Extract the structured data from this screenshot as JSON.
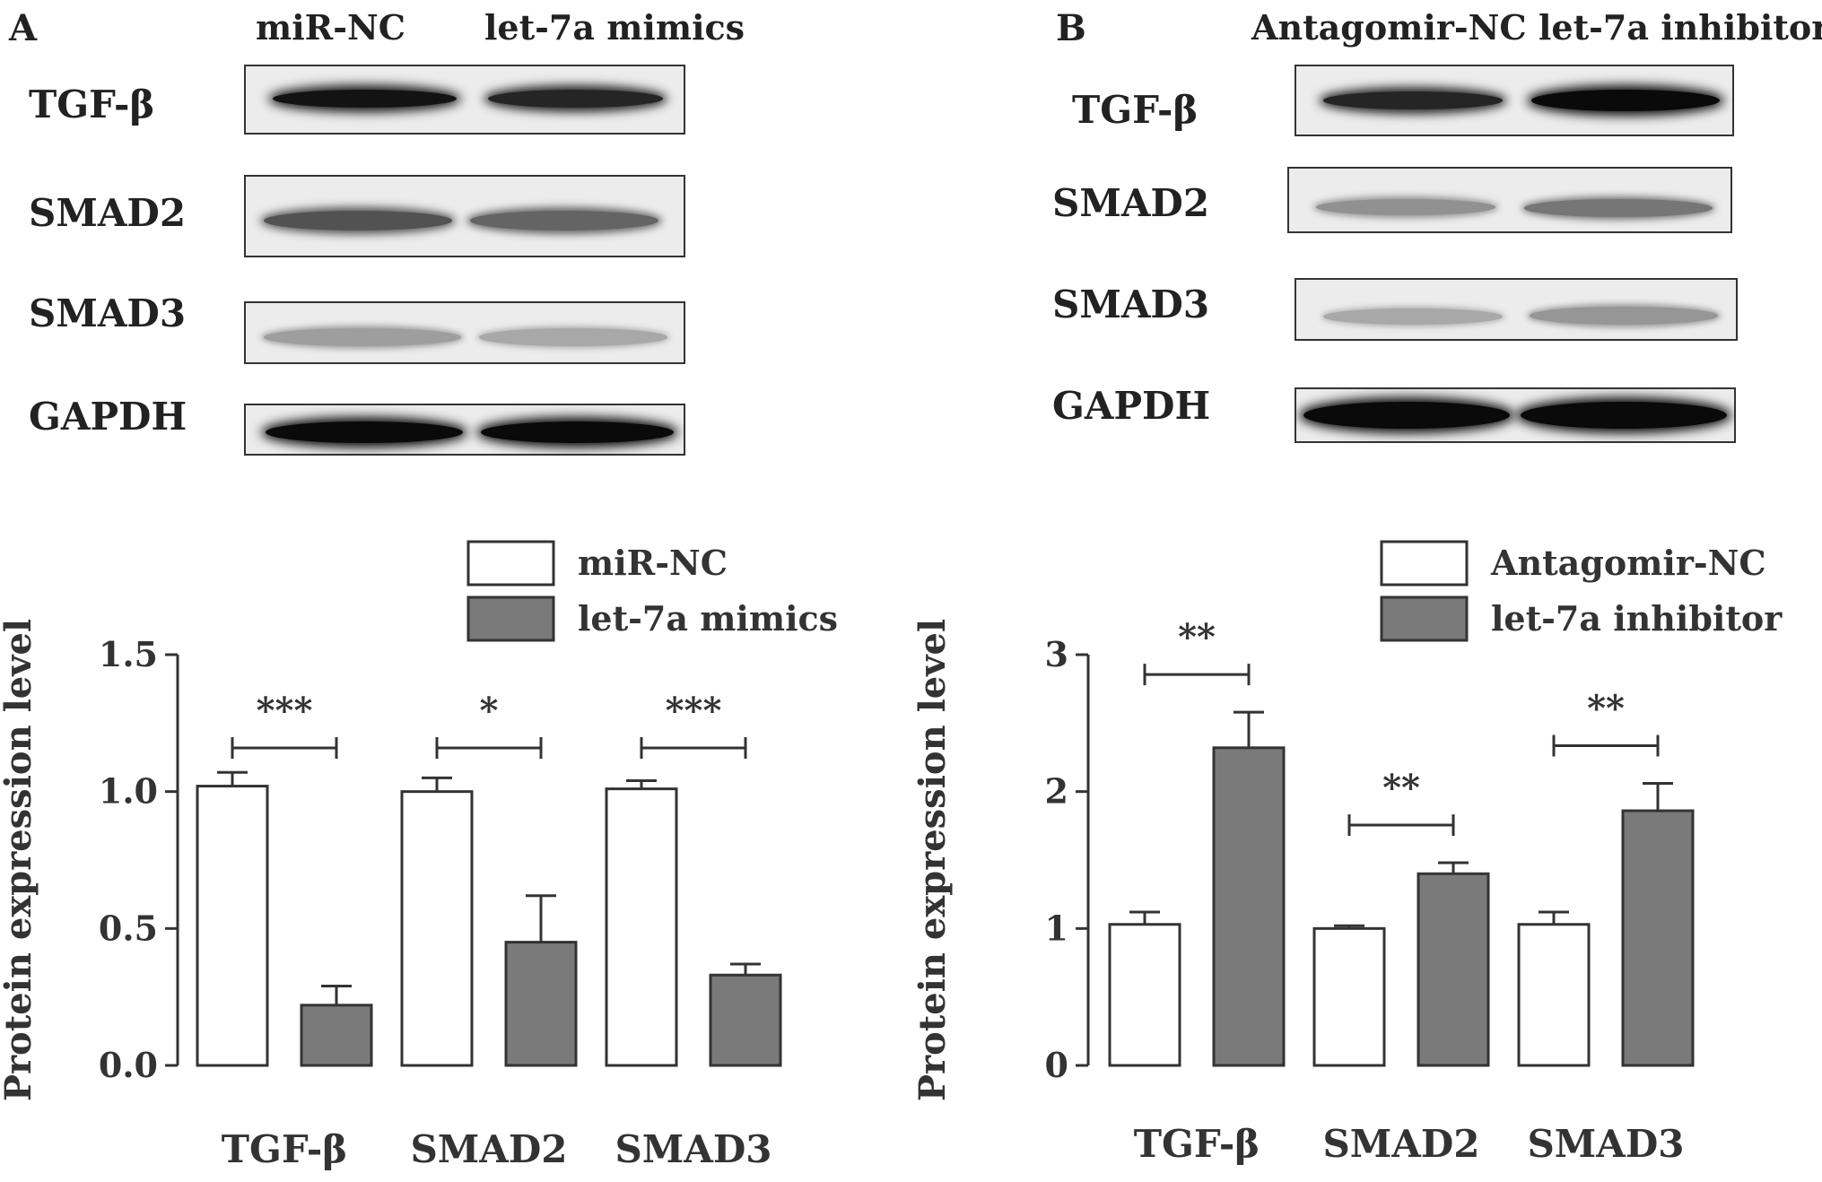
{
  "panels": [
    {
      "letter": "A",
      "lanes": [
        "miR-NC",
        "let-7a mimics"
      ],
      "blots": [
        {
          "protein": "TGF-β",
          "bands": [
            0.95,
            0.85
          ]
        },
        {
          "protein": "SMAD2",
          "bands": [
            0.6,
            0.5
          ]
        },
        {
          "protein": "SMAD3",
          "bands": [
            0.18,
            0.12
          ]
        },
        {
          "protein": "GAPDH",
          "bands": [
            1.0,
            1.0
          ]
        }
      ],
      "chart_data": {
        "type": "bar",
        "categories": [
          "TGF-β",
          "SMAD2",
          "SMAD3"
        ],
        "series": [
          {
            "name": "miR-NC",
            "values": [
              1.02,
              1.0,
              1.01
            ],
            "errors": [
              0.05,
              0.05,
              0.03
            ],
            "color": "#ffffff"
          },
          {
            "name": "let-7a mimics",
            "values": [
              0.22,
              0.45,
              0.33
            ],
            "errors": [
              0.07,
              0.17,
              0.04
            ],
            "color": "#7a7a7a"
          }
        ],
        "significance": [
          "***",
          "*",
          "***"
        ],
        "ylabel": "Protein expression level",
        "ylim": [
          0,
          1.5
        ],
        "yticks": [
          "0.0",
          "0.5",
          "1.0",
          "1.5"
        ],
        "ytick_values": [
          0,
          0.5,
          1.0,
          1.5
        ],
        "legend": "top-right"
      }
    },
    {
      "letter": "B",
      "lanes": [
        "Antagomir-NC",
        "let-7a inhibitor"
      ],
      "blots": [
        {
          "protein": "TGF-β",
          "bands": [
            0.85,
            1.0
          ]
        },
        {
          "protein": "SMAD2",
          "bands": [
            0.25,
            0.4
          ]
        },
        {
          "protein": "SMAD3",
          "bands": [
            0.12,
            0.22
          ]
        },
        {
          "protein": "GAPDH",
          "bands": [
            1.0,
            1.0
          ]
        }
      ],
      "chart_data": {
        "type": "bar",
        "categories": [
          "TGF-β",
          "SMAD2",
          "SMAD3"
        ],
        "series": [
          {
            "name": "Antagomir-NC",
            "values": [
              1.03,
              1.0,
              1.03
            ],
            "errors": [
              0.09,
              0.02,
              0.09
            ],
            "color": "#ffffff"
          },
          {
            "name": "let-7a inhibitor",
            "values": [
              2.32,
              1.4,
              1.86
            ],
            "errors": [
              0.26,
              0.08,
              0.2
            ],
            "color": "#7a7a7a"
          }
        ],
        "significance": [
          "**",
          "**",
          "**"
        ],
        "ylabel": "Protein expression level",
        "ylim": [
          0,
          3
        ],
        "yticks": [
          "0",
          "1",
          "2",
          "3"
        ],
        "ytick_values": [
          0,
          1,
          2,
          3
        ],
        "legend": "top-right"
      }
    }
  ]
}
